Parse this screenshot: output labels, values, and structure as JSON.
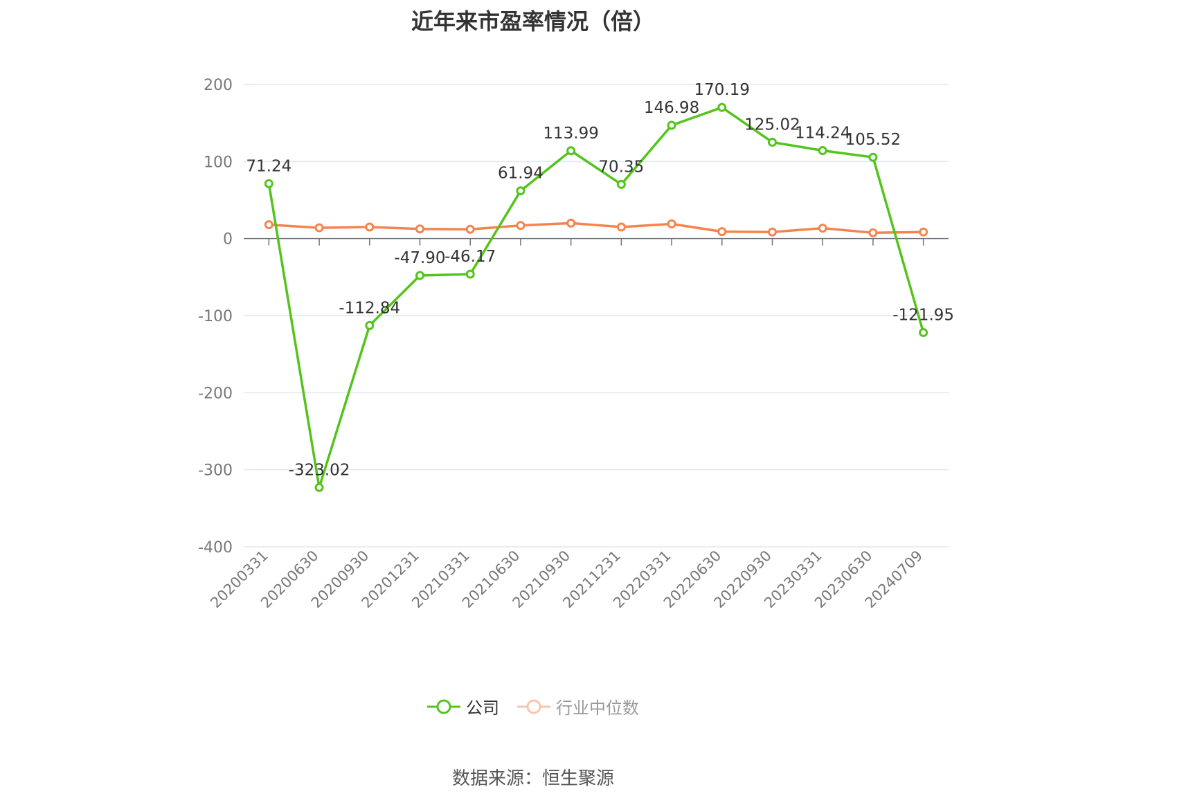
{
  "chart_data": {
    "type": "line",
    "title": "近年来市盈率情况（倍）",
    "categories": [
      "20200331",
      "20200630",
      "20200930",
      "20201231",
      "20210331",
      "20210630",
      "20210930",
      "20211231",
      "20220331",
      "20220630",
      "20220930",
      "20230331",
      "20230630",
      "20240709"
    ],
    "series": [
      {
        "name": "公司",
        "color": "#52c41a",
        "values": [
          71.24,
          -323.02,
          -112.84,
          -47.9,
          -46.17,
          61.94,
          113.99,
          70.35,
          146.98,
          170.19,
          125.02,
          114.24,
          105.52,
          -121.95
        ],
        "labels": [
          "71.24",
          "-323.02",
          "-112.84",
          "-47.90",
          "-46.17",
          "61.94",
          "113.99",
          "70.35",
          "146.98",
          "170.19",
          "125.02",
          "114.24",
          "105.52",
          "-121.95"
        ]
      },
      {
        "name": "行业中位数",
        "color": "#f5844c",
        "values": [
          18,
          14,
          15,
          12.5,
          12,
          17,
          20,
          15,
          19,
          9,
          8.5,
          13.5,
          7.5,
          8.5
        ]
      }
    ],
    "ylim": [
      -400,
      200
    ],
    "yticks": [
      200,
      100,
      0,
      -100,
      -200,
      -300,
      -400
    ],
    "grid": true,
    "legend_position": "bottom"
  },
  "source_text": "数据来源：恒生聚源"
}
